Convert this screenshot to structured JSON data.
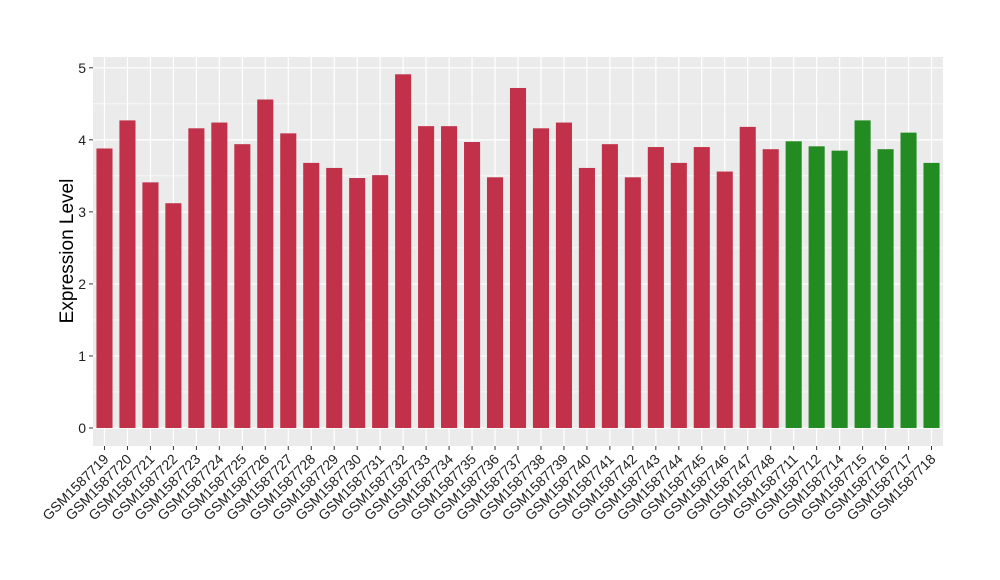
{
  "chart_data": {
    "type": "bar",
    "ylabel": "Expression Level",
    "xlabel": "",
    "ylim": [
      -0.25,
      5.15
    ],
    "yticks": [
      0,
      1,
      2,
      3,
      4,
      5
    ],
    "grid": true,
    "legend": "none",
    "colors": {
      "group1": "#C1314A",
      "group2": "#228B22",
      "panel": "#EBEBEB",
      "grid": "#FFFFFF"
    },
    "categories": [
      "GSM1587719",
      "GSM1587720",
      "GSM1587721",
      "GSM1587722",
      "GSM1587723",
      "GSM1587724",
      "GSM1587725",
      "GSM1587726",
      "GSM1587727",
      "GSM1587728",
      "GSM1587729",
      "GSM1587730",
      "GSM1587731",
      "GSM1587732",
      "GSM1587733",
      "GSM1587734",
      "GSM1587735",
      "GSM1587736",
      "GSM1587737",
      "GSM1587738",
      "GSM1587739",
      "GSM1587740",
      "GSM1587741",
      "GSM1587742",
      "GSM1587743",
      "GSM1587744",
      "GSM1587745",
      "GSM1587746",
      "GSM1587747",
      "GSM1587748",
      "GSM1587711",
      "GSM1587712",
      "GSM1587714",
      "GSM1587715",
      "GSM1587716",
      "GSM1587717",
      "GSM1587718"
    ],
    "values": [
      3.88,
      4.27,
      3.41,
      3.12,
      4.16,
      4.24,
      3.94,
      4.56,
      4.09,
      3.68,
      3.61,
      3.47,
      3.51,
      4.91,
      4.19,
      4.19,
      3.97,
      3.48,
      4.72,
      4.16,
      4.24,
      3.61,
      3.94,
      3.48,
      3.9,
      3.68,
      3.9,
      3.56,
      4.18,
      3.87,
      3.98,
      3.91,
      3.85,
      4.27,
      3.87,
      4.1,
      3.68
    ],
    "groups": [
      "group1",
      "group1",
      "group1",
      "group1",
      "group1",
      "group1",
      "group1",
      "group1",
      "group1",
      "group1",
      "group1",
      "group1",
      "group1",
      "group1",
      "group1",
      "group1",
      "group1",
      "group1",
      "group1",
      "group1",
      "group1",
      "group1",
      "group1",
      "group1",
      "group1",
      "group1",
      "group1",
      "group1",
      "group1",
      "group1",
      "group2",
      "group2",
      "group2",
      "group2",
      "group2",
      "group2",
      "group2"
    ]
  }
}
